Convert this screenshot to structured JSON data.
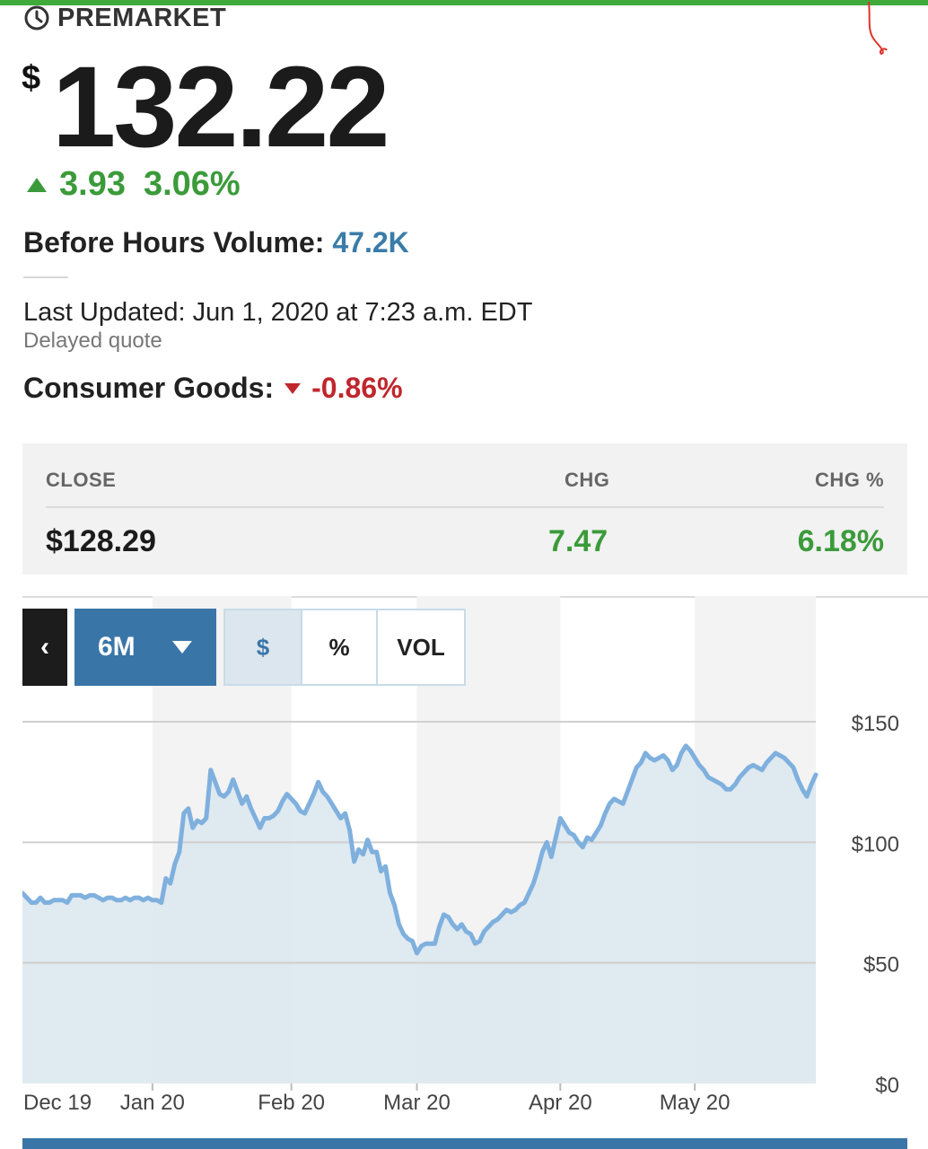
{
  "header": {
    "session_label": "PREMARKET",
    "currency_symbol": "$",
    "price": "132.22",
    "change": "3.93",
    "change_pct": "3.06%",
    "volume_label": "Before Hours Volume:",
    "volume_value": "47.2K",
    "last_updated": "Last Updated: Jun 1, 2020 at 7:23 a.m. EDT",
    "delayed": "Delayed quote",
    "sector_label": "Consumer Goods:",
    "sector_change": "-0.86%"
  },
  "summary": {
    "close_label": "CLOSE",
    "chg_label": "CHG",
    "chgpct_label": "CHG %",
    "close_value": "$128.29",
    "chg_value": "7.47",
    "chgpct_value": "6.18%"
  },
  "controls": {
    "back": "‹",
    "range": "6M",
    "dollar": "$",
    "percent": "%",
    "volume": "VOL"
  },
  "colors": {
    "up": "#3b9b3a",
    "down": "#c0262c",
    "accent": "#3a75a8",
    "line": "#7fb0de",
    "fill": "#dbe6ef"
  },
  "chart_data": {
    "type": "area",
    "ylim": [
      0,
      150
    ],
    "y_ticks": [
      "$150",
      "$100",
      "$50",
      "$0"
    ],
    "y_tick_values": [
      150,
      100,
      50,
      0
    ],
    "x_ticks": [
      "Dec 19",
      "Jan 20",
      "Feb 20",
      "Mar 20",
      "Apr 20",
      "May 20"
    ],
    "x_tick_days": [
      0,
      29,
      60,
      88,
      120,
      150
    ],
    "x_end_day": 177,
    "shaded_bands": [
      [
        29,
        60
      ],
      [
        88,
        120
      ],
      [
        150,
        177
      ]
    ],
    "series": [
      {
        "points": [
          [
            0,
            79
          ],
          [
            1,
            77
          ],
          [
            2,
            75
          ],
          [
            3,
            75
          ],
          [
            4,
            77
          ],
          [
            5,
            75
          ],
          [
            6,
            75
          ],
          [
            7,
            76
          ],
          [
            8,
            76
          ],
          [
            9,
            76
          ],
          [
            10,
            75
          ],
          [
            11,
            78
          ],
          [
            12,
            78
          ],
          [
            13,
            78
          ],
          [
            14,
            77
          ],
          [
            15,
            78
          ],
          [
            16,
            78
          ],
          [
            17,
            77
          ],
          [
            18,
            76
          ],
          [
            19,
            77
          ],
          [
            20,
            77
          ],
          [
            21,
            76
          ],
          [
            22,
            76
          ],
          [
            23,
            77
          ],
          [
            24,
            76
          ],
          [
            25,
            77
          ],
          [
            26,
            77
          ],
          [
            27,
            76
          ],
          [
            28,
            77
          ],
          [
            29,
            76
          ],
          [
            30,
            76
          ],
          [
            31,
            75
          ],
          [
            32,
            85
          ],
          [
            33,
            83
          ],
          [
            34,
            91
          ],
          [
            35,
            96
          ],
          [
            36,
            112
          ],
          [
            37,
            114
          ],
          [
            38,
            106
          ],
          [
            39,
            109
          ],
          [
            40,
            108
          ],
          [
            41,
            110
          ],
          [
            42,
            130
          ],
          [
            43,
            125
          ],
          [
            44,
            120
          ],
          [
            45,
            119
          ],
          [
            46,
            121
          ],
          [
            47,
            126
          ],
          [
            48,
            121
          ],
          [
            49,
            116
          ],
          [
            50,
            119
          ],
          [
            51,
            114
          ],
          [
            52,
            110
          ],
          [
            53,
            106
          ],
          [
            54,
            110
          ],
          [
            55,
            110
          ],
          [
            56,
            111
          ],
          [
            57,
            113
          ],
          [
            58,
            117
          ],
          [
            59,
            120
          ],
          [
            60,
            118
          ],
          [
            61,
            116
          ],
          [
            62,
            113
          ],
          [
            63,
            112
          ],
          [
            64,
            116
          ],
          [
            65,
            120
          ],
          [
            66,
            125
          ],
          [
            67,
            121
          ],
          [
            68,
            119
          ],
          [
            69,
            116
          ],
          [
            70,
            113
          ],
          [
            71,
            110
          ],
          [
            72,
            112
          ],
          [
            73,
            105
          ],
          [
            74,
            92
          ],
          [
            75,
            97
          ],
          [
            76,
            95
          ],
          [
            77,
            101
          ],
          [
            78,
            96
          ],
          [
            79,
            96
          ],
          [
            80,
            88
          ],
          [
            81,
            90
          ],
          [
            82,
            79
          ],
          [
            83,
            74
          ],
          [
            84,
            66
          ],
          [
            85,
            62
          ],
          [
            86,
            60
          ],
          [
            87,
            59
          ],
          [
            88,
            54
          ],
          [
            89,
            57
          ],
          [
            90,
            58
          ],
          [
            91,
            58
          ],
          [
            92,
            58
          ],
          [
            93,
            65
          ],
          [
            94,
            70
          ],
          [
            95,
            69
          ],
          [
            96,
            66
          ],
          [
            97,
            64
          ],
          [
            98,
            66
          ],
          [
            99,
            63
          ],
          [
            100,
            62
          ],
          [
            101,
            58
          ],
          [
            102,
            59
          ],
          [
            103,
            63
          ],
          [
            104,
            65
          ],
          [
            105,
            67
          ],
          [
            106,
            68
          ],
          [
            107,
            70
          ],
          [
            108,
            72
          ],
          [
            109,
            71
          ],
          [
            110,
            72
          ],
          [
            111,
            74
          ],
          [
            112,
            75
          ],
          [
            113,
            79
          ],
          [
            114,
            83
          ],
          [
            115,
            89
          ],
          [
            116,
            96
          ],
          [
            117,
            100
          ],
          [
            118,
            94
          ],
          [
            119,
            102
          ],
          [
            120,
            110
          ],
          [
            121,
            107
          ],
          [
            122,
            104
          ],
          [
            123,
            103
          ],
          [
            124,
            100
          ],
          [
            125,
            98
          ],
          [
            126,
            102
          ],
          [
            127,
            101
          ],
          [
            128,
            104
          ],
          [
            129,
            107
          ],
          [
            130,
            112
          ],
          [
            131,
            116
          ],
          [
            132,
            118
          ],
          [
            133,
            117
          ],
          [
            134,
            116
          ],
          [
            135,
            121
          ],
          [
            136,
            126
          ],
          [
            137,
            131
          ],
          [
            138,
            133
          ],
          [
            139,
            137
          ],
          [
            140,
            135
          ],
          [
            141,
            134
          ],
          [
            142,
            135
          ],
          [
            143,
            136
          ],
          [
            144,
            134
          ],
          [
            145,
            130
          ],
          [
            146,
            132
          ],
          [
            147,
            137
          ],
          [
            148,
            140
          ],
          [
            149,
            138
          ],
          [
            150,
            135
          ],
          [
            151,
            132
          ],
          [
            152,
            130
          ],
          [
            153,
            127
          ],
          [
            154,
            126
          ],
          [
            155,
            125
          ],
          [
            156,
            124
          ],
          [
            157,
            122
          ],
          [
            158,
            122
          ],
          [
            159,
            124
          ],
          [
            160,
            127
          ],
          [
            161,
            129
          ],
          [
            162,
            131
          ],
          [
            163,
            132
          ],
          [
            164,
            131
          ],
          [
            165,
            130
          ],
          [
            166,
            133
          ],
          [
            167,
            135
          ],
          [
            168,
            137
          ],
          [
            169,
            136
          ],
          [
            170,
            135
          ],
          [
            171,
            133
          ],
          [
            172,
            131
          ],
          [
            173,
            126
          ],
          [
            174,
            122
          ],
          [
            175,
            119
          ],
          [
            176,
            124
          ],
          [
            177,
            128
          ]
        ]
      }
    ]
  }
}
